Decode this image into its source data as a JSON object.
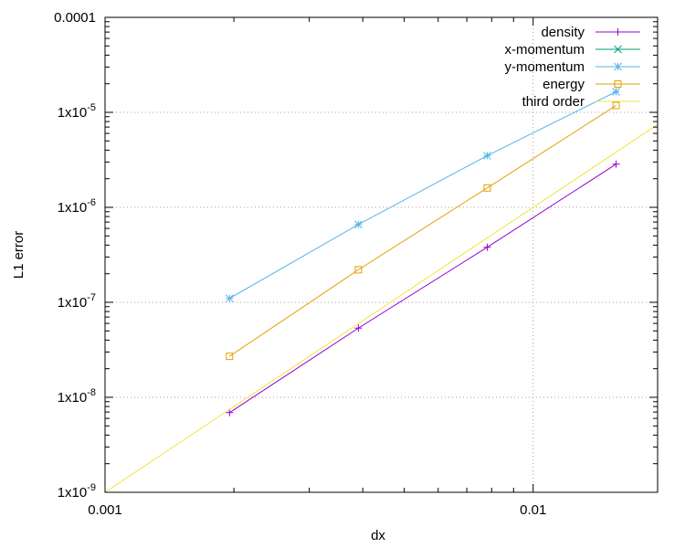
{
  "chart_data": {
    "type": "line",
    "title": "",
    "xlabel": "dx",
    "ylabel": "L1 error",
    "xscale": "log",
    "yscale": "log",
    "xlim": [
      0.001,
      0.01953125
    ],
    "ylim": [
      1e-09,
      0.0001
    ],
    "grid": true,
    "legend_position": "top-right",
    "x_ticks": [
      {
        "value": 0.001,
        "label": "0.001"
      },
      {
        "value": 0.01,
        "label": "0.01"
      }
    ],
    "y_ticks": [
      {
        "value": 1e-09,
        "label": "1x10-9",
        "mantissa": "1x10",
        "exponent": "-9"
      },
      {
        "value": 1e-08,
        "label": "1x10-8",
        "mantissa": "1x10",
        "exponent": "-8"
      },
      {
        "value": 1e-07,
        "label": "1x10-7",
        "mantissa": "1x10",
        "exponent": "-7"
      },
      {
        "value": 1e-06,
        "label": "1x10-6",
        "mantissa": "1x10",
        "exponent": "-6"
      },
      {
        "value": 1e-05,
        "label": "1x10-5",
        "mantissa": "1x10",
        "exponent": "-5"
      },
      {
        "value": 0.0001,
        "label": "0.0001",
        "mantissa": "0.0001",
        "exponent": ""
      }
    ],
    "series": [
      {
        "name": "density",
        "color": "#9400d3",
        "marker": "plus",
        "x": [
          0.001953125,
          0.00390625,
          0.0078125,
          0.015625
        ],
        "values": [
          6.9e-09,
          5.35e-08,
          3.8e-07,
          2.85e-06
        ]
      },
      {
        "name": "x-momentum",
        "color": "#009e73",
        "marker": "cross",
        "x": [],
        "values": []
      },
      {
        "name": "y-momentum",
        "color": "#56b4e9",
        "marker": "star",
        "x": [
          0.001953125,
          0.00390625,
          0.0078125,
          0.015625
        ],
        "values": [
          1.1e-07,
          6.6e-07,
          3.5e-06,
          1.65e-05
        ]
      },
      {
        "name": "energy",
        "color": "#e69f00",
        "marker": "box",
        "x": [
          0.001953125,
          0.00390625,
          0.0078125,
          0.015625
        ],
        "values": [
          2.7e-08,
          2.2e-07,
          1.6e-06,
          1.18e-05
        ]
      },
      {
        "name": "third order",
        "color": "#f0e442",
        "marker": "none",
        "x": [
          0.001,
          0.01953125
        ],
        "values": [
          1e-09,
          7.45e-06
        ]
      }
    ]
  }
}
